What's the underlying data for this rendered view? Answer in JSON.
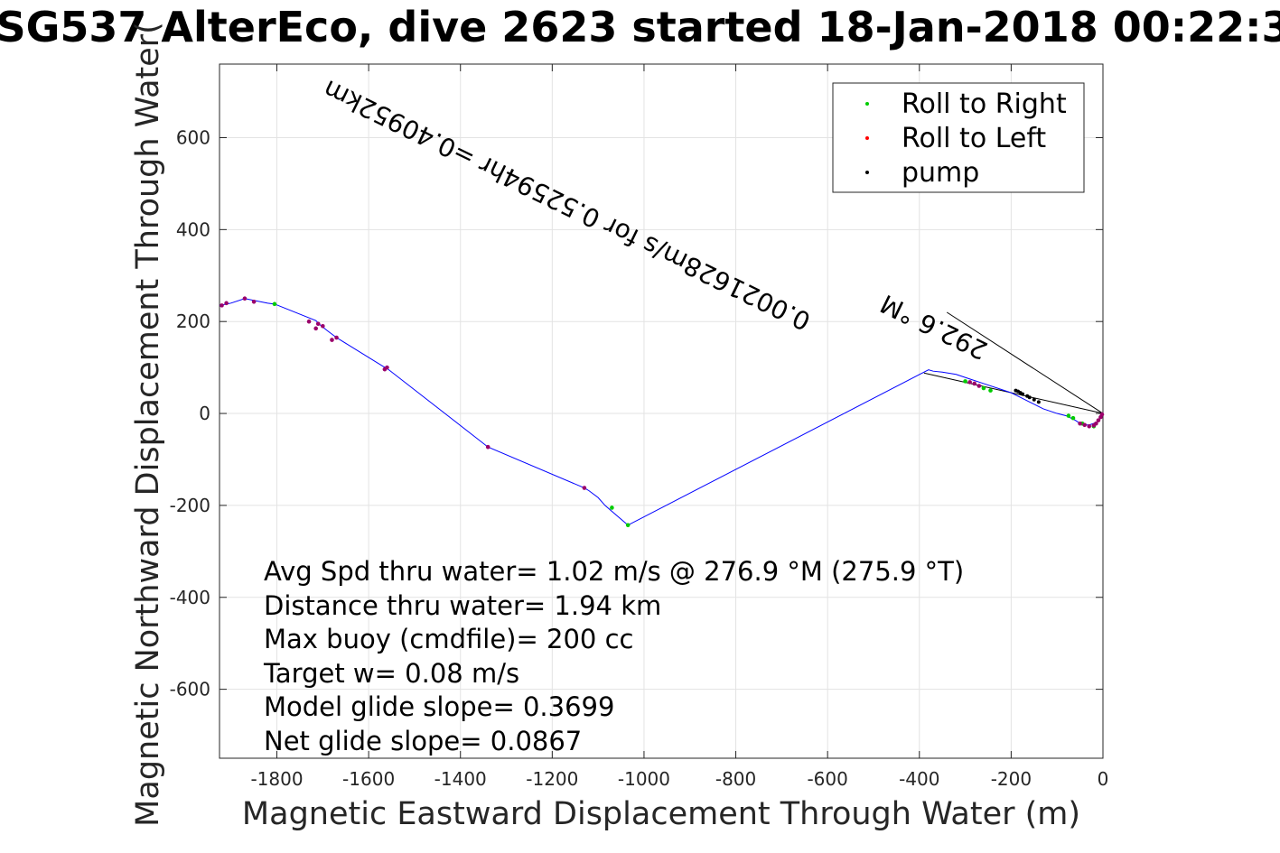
{
  "chart_data": {
    "type": "line",
    "title": "SG537 AlterEco, dive 2623 started 18-Jan-2018 00:22:3",
    "xlabel": "Magnetic Eastward Displacement Through Water (m)",
    "ylabel": "Magnetic Northward Displacement Through Water(",
    "xlim": [
      -1925,
      0
    ],
    "ylim": [
      -750,
      760
    ],
    "x_ticks": [
      -1800,
      -1600,
      -1400,
      -1200,
      -1000,
      -800,
      -600,
      -400,
      -200,
      0
    ],
    "y_ticks": [
      -600,
      -400,
      -200,
      0,
      200,
      400,
      600
    ],
    "grid": true,
    "legend_position": "top-right",
    "colors": {
      "track": "#0000ff",
      "roll_right": "#00cc00",
      "roll_left": "#ff0000",
      "pump": "#000000",
      "pump_marker": "#9b006b"
    },
    "track": {
      "x": [
        0,
        -5,
        -15,
        -30,
        -45,
        -60,
        -80,
        -100,
        -130,
        -160,
        -180,
        -200,
        -230,
        -260,
        -290,
        -320,
        -350,
        -370,
        -380,
        -1035,
        -1070,
        -1085,
        -1100,
        -1120,
        -1130,
        -1340,
        -1560,
        -1568,
        -1670,
        -1690,
        -1705,
        -1715,
        -1805,
        -1820,
        -1870,
        -1900,
        -1925
      ],
      "y": [
        0,
        -10,
        -20,
        -25,
        -25,
        -15,
        -5,
        0,
        10,
        25,
        35,
        45,
        55,
        65,
        75,
        85,
        90,
        92,
        95,
        -243,
        -213,
        -200,
        -183,
        -168,
        -162,
        -73,
        98,
        102,
        165,
        180,
        192,
        202,
        238,
        240,
        250,
        240,
        235
      ]
    },
    "series": [
      {
        "name": "Roll to Right",
        "x": [
          -20,
          -45,
          -65,
          -75,
          -245,
          -260,
          -300,
          -1035,
          -1070,
          -1805
        ],
        "y": [
          -28,
          -22,
          -10,
          -5,
          50,
          55,
          70,
          -243,
          -205,
          238
        ]
      },
      {
        "name": "Roll to Left",
        "x": [
          -2,
          -5,
          -10,
          -15,
          -20,
          -30,
          -40,
          -50,
          -270,
          -280,
          -290,
          -1130,
          -1340,
          -1560,
          -1565,
          -1670,
          -1680,
          -1700,
          -1710,
          -1715,
          -1730,
          -1850,
          -1870,
          -1910,
          -1920
        ],
        "y": [
          -2,
          -8,
          -15,
          -22,
          -26,
          -28,
          -25,
          -22,
          60,
          65,
          68,
          -162,
          -73,
          100,
          96,
          165,
          160,
          190,
          195,
          185,
          200,
          243,
          250,
          240,
          235
        ]
      },
      {
        "name": "pump",
        "x": [
          -140,
          -150,
          -160,
          -165,
          -175,
          -180,
          -185,
          -190
        ],
        "y": [
          25,
          30,
          35,
          38,
          42,
          45,
          48,
          50
        ]
      }
    ],
    "annotations": [
      {
        "text": "0.0021628m/s for 0.52594hr =0.40952km",
        "x": -1160,
        "y": 470,
        "angle": 206
      },
      {
        "text": "292.6 °M",
        "x": -360,
        "y": 205,
        "angle": 206
      }
    ],
    "stats": [
      "Avg Spd thru water=  1.02 m/s @ 276.9 °M (275.9 °T)",
      "Distance thru water=  1.94 km",
      "Max buoy (cmdfile)= 200 cc",
      "Target w= 0.08 m/s",
      "Model glide slope= 0.3699",
      "Net glide slope= 0.0867"
    ]
  }
}
